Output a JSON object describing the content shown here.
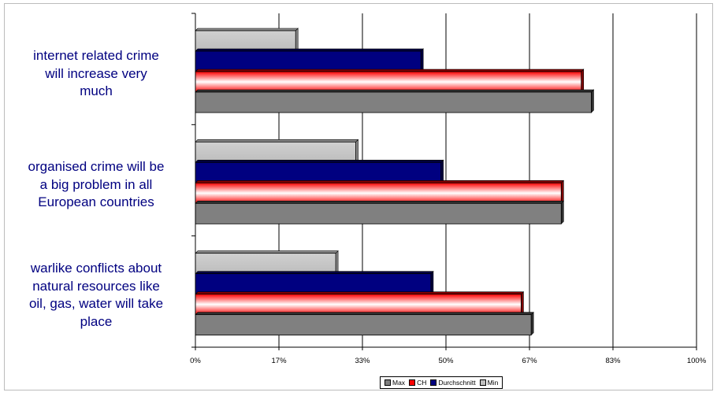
{
  "chart_data": {
    "type": "bar",
    "orientation": "horizontal",
    "categories": [
      "internet related crime will increase very much",
      "organised crime will be a big problem in all European countries",
      "warlike conflicts about natural resources like oil, gas, water will take place"
    ],
    "category_lines": [
      [
        "internet related crime",
        "will increase very",
        "much"
      ],
      [
        "organised crime will be",
        "a big problem in all",
        "European countries"
      ],
      [
        "warlike conflicts about",
        "natural resources like",
        "oil, gas, water will take",
        "place"
      ]
    ],
    "series": [
      {
        "name": "Min",
        "color": "#c0c0c0",
        "values": [
          20,
          32,
          28
        ]
      },
      {
        "name": "Durchschnitt",
        "color": "#000080",
        "values": [
          45,
          49,
          47
        ]
      },
      {
        "name": "CH",
        "color": "#ff0000",
        "values": [
          77,
          73,
          65
        ]
      },
      {
        "name": "Max",
        "color": "#808080",
        "values": [
          79,
          73,
          67
        ]
      }
    ],
    "legend_order": [
      "Max",
      "CH",
      "Durchschnitt",
      "Min"
    ],
    "x_ticks": [
      0,
      16.67,
      33.33,
      50,
      66.67,
      83.33,
      100
    ],
    "x_tick_labels": [
      "0%",
      "17%",
      "33%",
      "50%",
      "67%",
      "83%",
      "100%"
    ],
    "xlim": [
      0,
      100
    ],
    "grid": true,
    "legend_position": "bottom",
    "title": "",
    "xlabel": "",
    "ylabel": ""
  }
}
